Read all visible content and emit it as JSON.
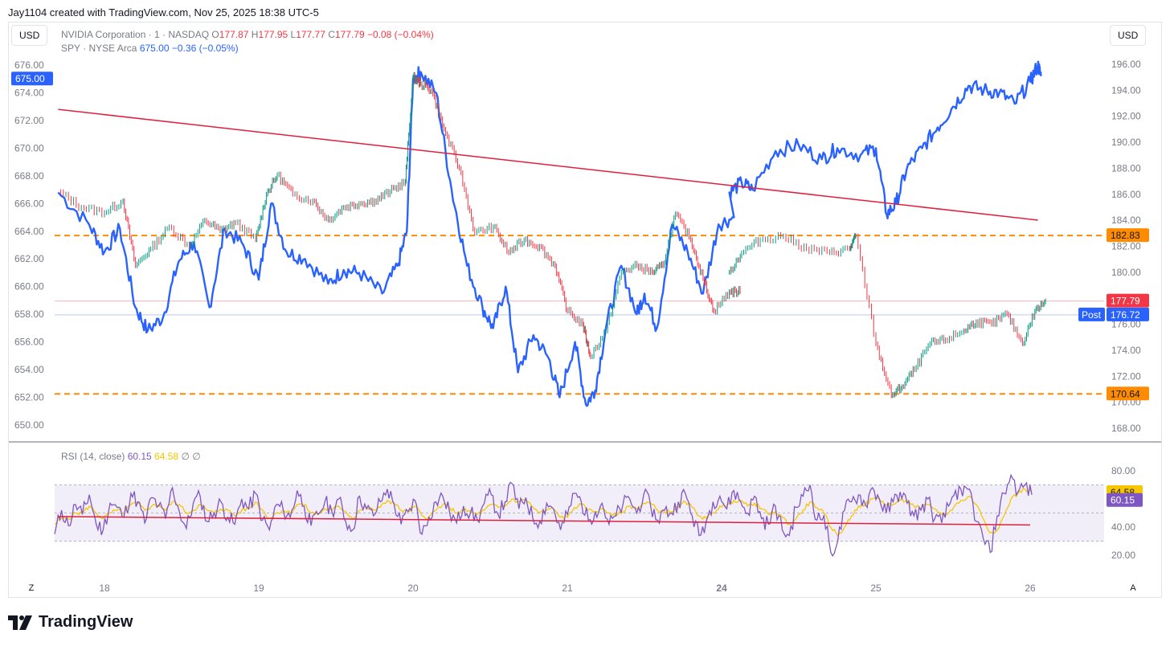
{
  "attribution": "Jay1104 created with TradingView.com, Nov 25, 2025 18:38 UTC-5",
  "currency_left": "USD",
  "currency_right": "USD",
  "legend_nvda": {
    "name": "NVIDIA Corporation · 1 · NASDAQ",
    "o_label": "O",
    "o": "177.87",
    "h_label": "H",
    "h": "177.95",
    "l_label": "L",
    "l": "177.77",
    "c_label": "C",
    "c": "177.79",
    "change": "−0.08 (−0.04%)"
  },
  "legend_spy": {
    "name": "SPY · NYSE Arca",
    "price": "675.00",
    "change": "−0.36 (−0.05%)"
  },
  "rsi_legend": {
    "name": "RSI (14, close)",
    "rsi": "60.15",
    "ma": "64.58",
    "extra1": "∅",
    "extra2": "∅"
  },
  "bottom": {
    "z": "Z",
    "a": "A"
  },
  "brand": "TradingView",
  "colors": {
    "spy": "#2962ff",
    "trend": "#e01f3d",
    "level": "#ff8c00",
    "rsi": "#7e57c2",
    "rsi_ma": "#f7c600",
    "up": "#089981",
    "down": "#f23645"
  },
  "chart_data": [
    {
      "type": "line",
      "title": "NVIDIA Corporation · 1 · NASDAQ vs SPY · NYSE Arca",
      "x_ticks": [
        "18",
        "19",
        "20",
        "21",
        "24",
        "25",
        "26"
      ],
      "left_axis": {
        "ticks": [
          "676.00",
          "674.00",
          "672.00",
          "670.00",
          "668.00",
          "666.00",
          "664.00",
          "662.00",
          "660.00",
          "658.00",
          "656.00",
          "654.00",
          "652.00",
          "650.00"
        ],
        "range": [
          649,
          677
        ]
      },
      "right_axis": {
        "ticks": [
          "196.00",
          "194.00",
          "192.00",
          "190.00",
          "188.00",
          "186.00",
          "184.00",
          "182.00",
          "180.00",
          "178.00",
          "176.00",
          "174.00",
          "172.00",
          "170.00",
          "168.00"
        ],
        "range": [
          166.9,
          197.1
        ]
      },
      "series": [
        {
          "name": "SPY · NYSE Arca",
          "axis": "left",
          "points": [
            [
              17.7,
              666.8
            ],
            [
              17.9,
              664.5
            ],
            [
              18.0,
              662.5
            ],
            [
              18.1,
              664.2
            ],
            [
              18.2,
              658.5
            ],
            [
              18.28,
              656.8
            ],
            [
              18.38,
              657.8
            ],
            [
              18.48,
              661.8
            ],
            [
              18.58,
              663.2
            ],
            [
              18.68,
              658.5
            ],
            [
              18.78,
              664.2
            ],
            [
              18.9,
              663.0
            ],
            [
              19.0,
              660.5
            ],
            [
              19.08,
              666.0
            ],
            [
              19.18,
              662.5
            ],
            [
              19.3,
              662.0
            ],
            [
              19.45,
              660.2
            ],
            [
              19.55,
              661.2
            ],
            [
              19.65,
              661.0
            ],
            [
              19.8,
              659.5
            ],
            [
              19.9,
              661.5
            ],
            [
              19.96,
              664.0
            ],
            [
              20.0,
              675.0
            ],
            [
              20.05,
              675.5
            ],
            [
              20.15,
              674.0
            ],
            [
              20.25,
              667.0
            ],
            [
              20.35,
              661.5
            ],
            [
              20.45,
              658.5
            ],
            [
              20.52,
              657.0
            ],
            [
              20.6,
              660.0
            ],
            [
              20.68,
              653.8
            ],
            [
              20.78,
              656.5
            ],
            [
              20.88,
              654.8
            ],
            [
              20.95,
              652.0
            ],
            [
              21.05,
              656.0
            ],
            [
              21.12,
              651.5
            ],
            [
              21.18,
              652.5
            ],
            [
              21.25,
              657.0
            ],
            [
              21.35,
              661.5
            ],
            [
              21.45,
              658.0
            ],
            [
              21.5,
              659.5
            ],
            [
              21.58,
              657.0
            ],
            [
              21.68,
              664.5
            ],
            [
              21.78,
              662.5
            ],
            [
              21.88,
              659.5
            ],
            [
              21.98,
              664.5
            ],
            [
              22.08,
              665.0
            ],
            [
              23.0,
              666.8
            ],
            [
              23.08,
              667.5
            ],
            [
              23.15,
              667.0
            ],
            [
              23.3,
              669.8
            ],
            [
              23.45,
              670.2
            ],
            [
              23.6,
              669.2
            ],
            [
              23.7,
              670.0
            ],
            [
              23.85,
              669.5
            ],
            [
              23.95,
              670.0
            ],
            [
              24.02,
              665.2
            ],
            [
              24.08,
              666.0
            ],
            [
              24.15,
              668.5
            ],
            [
              24.25,
              670.0
            ],
            [
              24.35,
              671.5
            ],
            [
              24.45,
              673.0
            ],
            [
              24.55,
              674.5
            ],
            [
              24.65,
              674.2
            ],
            [
              24.75,
              674.0
            ],
            [
              24.85,
              673.2
            ],
            [
              24.95,
              674.8
            ],
            [
              25.0,
              676.0
            ],
            [
              25.02,
              675.2
            ]
          ]
        },
        {
          "name": "NVIDIA Corporation · 1 · NASDAQ",
          "axis": "right",
          "style": "candles",
          "points": [
            [
              17.7,
              186.2
            ],
            [
              17.85,
              185.0
            ],
            [
              18.0,
              184.6
            ],
            [
              18.12,
              185.5
            ],
            [
              18.2,
              180.5
            ],
            [
              18.3,
              181.8
            ],
            [
              18.42,
              183.5
            ],
            [
              18.55,
              182.0
            ],
            [
              18.65,
              184.0
            ],
            [
              18.75,
              183.2
            ],
            [
              18.85,
              183.8
            ],
            [
              18.98,
              182.5
            ],
            [
              19.05,
              186.0
            ],
            [
              19.12,
              187.5
            ],
            [
              19.22,
              186.0
            ],
            [
              19.35,
              185.5
            ],
            [
              19.45,
              184.0
            ],
            [
              19.55,
              185.0
            ],
            [
              19.65,
              185.3
            ],
            [
              19.75,
              185.5
            ],
            [
              19.85,
              186.2
            ],
            [
              19.95,
              187.0
            ],
            [
              20.0,
              195.0
            ],
            [
              20.05,
              194.5
            ],
            [
              20.12,
              194.0
            ],
            [
              20.2,
              191.0
            ],
            [
              20.3,
              188.0
            ],
            [
              20.4,
              183.0
            ],
            [
              20.52,
              183.5
            ],
            [
              20.62,
              181.5
            ],
            [
              20.72,
              182.5
            ],
            [
              20.82,
              182.0
            ],
            [
              20.92,
              180.5
            ],
            [
              21.0,
              177.0
            ],
            [
              21.1,
              176.0
            ],
            [
              21.15,
              173.5
            ],
            [
              21.25,
              175.5
            ],
            [
              21.35,
              180.0
            ],
            [
              21.45,
              180.5
            ],
            [
              21.55,
              180.0
            ],
            [
              21.62,
              180.5
            ],
            [
              21.7,
              184.5
            ],
            [
              21.8,
              182.5
            ],
            [
              21.88,
              179.5
            ],
            [
              21.95,
              177.0
            ],
            [
              22.05,
              178.5
            ],
            [
              22.12,
              178.5
            ],
            [
              23.0,
              180.0
            ],
            [
              23.08,
              181.5
            ],
            [
              23.2,
              182.5
            ],
            [
              23.35,
              182.8
            ],
            [
              23.5,
              181.8
            ],
            [
              23.65,
              181.5
            ],
            [
              23.78,
              181.8
            ],
            [
              23.82,
              182.8
            ],
            [
              23.95,
              174.5
            ],
            [
              24.05,
              170.5
            ],
            [
              24.12,
              171.2
            ],
            [
              24.2,
              172.5
            ],
            [
              24.3,
              174.5
            ],
            [
              24.4,
              174.8
            ],
            [
              24.52,
              175.5
            ],
            [
              24.6,
              176.2
            ],
            [
              24.7,
              176.0
            ],
            [
              24.8,
              176.8
            ],
            [
              24.9,
              174.5
            ],
            [
              24.98,
              177.0
            ],
            [
              25.05,
              177.8
            ]
          ]
        }
      ],
      "trendline": {
        "axis": "left",
        "from": [
          17.7,
          672.8
        ],
        "to": [
          25.0,
          664.8
        ]
      },
      "levels": [
        {
          "axis": "right",
          "value": 182.83,
          "label": "182.83"
        },
        {
          "axis": "right",
          "value": 170.64,
          "label": "170.64"
        }
      ],
      "price_tags": [
        {
          "axis": "left",
          "value": 675.0,
          "label": "675.00"
        },
        {
          "axis": "right",
          "value": 177.79,
          "label": "177.79"
        },
        {
          "axis": "right",
          "value": 176.72,
          "label": "176.72",
          "prefix": "Post"
        }
      ]
    },
    {
      "type": "line",
      "title": "RSI (14, close)",
      "y_ticks": [
        "80.00",
        "40.00",
        "20.00"
      ],
      "ylim": [
        13,
        88
      ],
      "bands": {
        "upper": 70,
        "middle": 50,
        "lower": 30
      },
      "series": [
        {
          "name": "RSI",
          "values": [
            35,
            52,
            41,
            56,
            49,
            63,
            42,
            38,
            57,
            54,
            47,
            64,
            58,
            43,
            61,
            55,
            46,
            68,
            51,
            39,
            57,
            62,
            44,
            50,
            58,
            47,
            42,
            60,
            53,
            64,
            45,
            38,
            56,
            52,
            47,
            66,
            55,
            41,
            49,
            58,
            51,
            60,
            44,
            38,
            62,
            53,
            48,
            58,
            67,
            56,
            42,
            51,
            59,
            35,
            47,
            58,
            62,
            50,
            43,
            55,
            50,
            45,
            57,
            63,
            49,
            58,
            71,
            53,
            61,
            46,
            44,
            57,
            53,
            38,
            49,
            64,
            58,
            45,
            51,
            57,
            42,
            48,
            56,
            60,
            50,
            63,
            55,
            45,
            52,
            50,
            58,
            64,
            48,
            34,
            44,
            58,
            62,
            53,
            66,
            58,
            50,
            62,
            46,
            42,
            55,
            38,
            34,
            54,
            62,
            70,
            45,
            48,
            22,
            30,
            52,
            58,
            63,
            56,
            68,
            60,
            50,
            58,
            65,
            57,
            48,
            52,
            60,
            46,
            43,
            55,
            66,
            62,
            67,
            44,
            32,
            22,
            48,
            64,
            77,
            65,
            70,
            63
          ]
        },
        {
          "name": "RSI MA",
          "values": [
            42,
            46,
            46,
            50,
            50,
            55,
            50,
            46,
            50,
            52,
            50,
            56,
            57,
            52,
            55,
            56,
            52,
            58,
            56,
            50,
            52,
            56,
            52,
            50,
            53,
            52,
            48,
            52,
            53,
            58,
            52,
            46,
            50,
            52,
            50,
            56,
            56,
            50,
            49,
            53,
            52,
            55,
            51,
            46,
            52,
            54,
            52,
            54,
            59,
            57,
            52,
            51,
            55,
            48,
            47,
            52,
            56,
            54,
            50,
            52,
            51,
            49,
            52,
            56,
            54,
            55,
            60,
            58,
            60,
            54,
            50,
            52,
            53,
            47,
            47,
            54,
            56,
            52,
            51,
            53,
            50,
            48,
            51,
            55,
            53,
            57,
            57,
            52,
            51,
            51,
            54,
            58,
            54,
            48,
            46,
            50,
            55,
            55,
            59,
            59,
            55,
            57,
            53,
            49,
            51,
            47,
            42,
            46,
            52,
            58,
            54,
            50,
            40,
            34,
            40,
            48,
            55,
            56,
            60,
            60,
            56,
            56,
            59,
            59,
            55,
            53,
            56,
            53,
            49,
            50,
            56,
            59,
            62,
            56,
            46,
            36,
            38,
            48,
            60,
            64,
            67,
            65
          ]
        }
      ],
      "trendline": {
        "from": [
          17.7,
          47.5
        ],
        "to": [
          24.0,
          41.5
        ]
      },
      "price_tags": [
        {
          "value": 64.58,
          "label": "64.58",
          "series": "RSI MA"
        },
        {
          "value": 60.15,
          "label": "60.15",
          "series": "RSI"
        }
      ]
    }
  ]
}
